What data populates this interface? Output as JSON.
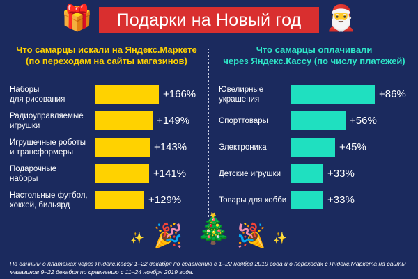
{
  "header": {
    "title": "Подарки на Новый год",
    "left_icon": "gift-icon",
    "right_icon": "santa-icon"
  },
  "colors": {
    "background": "#1b2a5e",
    "title_bg": "#d92f2f",
    "left_accent": "#ffd200",
    "right_accent": "#1fe0c0"
  },
  "chart_data": [
    {
      "type": "bar",
      "orientation": "horizontal",
      "title": "Что самарцы искали на Яндекс.Маркете\n(по переходам на сайты магазинов)",
      "categories": [
        "Наборы\nдля рисования",
        "Радиоуправляемые\nигрушки",
        "Игрушечные роботы\nи трансформеры",
        "Подарочные\nнаборы",
        "Настольные футбол,\nхоккей, бильярд"
      ],
      "values": [
        166,
        149,
        143,
        141,
        129
      ],
      "value_labels": [
        "+166%",
        "+149%",
        "+143%",
        "+141%",
        "+129%"
      ],
      "unit": "%",
      "color": "#ffd200"
    },
    {
      "type": "bar",
      "orientation": "horizontal",
      "title": "Что самарцы оплачивали\nчерез Яндекс.Кассу (по числу платежей)",
      "categories": [
        "Ювелирные\nукрашения",
        "Спорттовары",
        "Электроника",
        "Детские игрушки",
        "Товары для хобби"
      ],
      "values": [
        86,
        56,
        45,
        33,
        33
      ],
      "value_labels": [
        "+86%",
        "+56%",
        "+45%",
        "+33%",
        "+33%"
      ],
      "unit": "%",
      "color": "#1fe0c0"
    }
  ],
  "decor": {
    "left_emoji": "party-popper-icon",
    "center_emoji": "christmas-tree-icon",
    "right_emoji": "party-popper-icon",
    "sparkles": "sparkles-icon"
  },
  "footnote": "По данным о платежах через Яндекс.Кассу 1–22 декабря по сравнению с 1–22 ноября 2019 года и о переходах с Яндекс.Маркета на сайты магазинов 9–22 декабря по сравнению с 11–24 ноября 2019 года."
}
